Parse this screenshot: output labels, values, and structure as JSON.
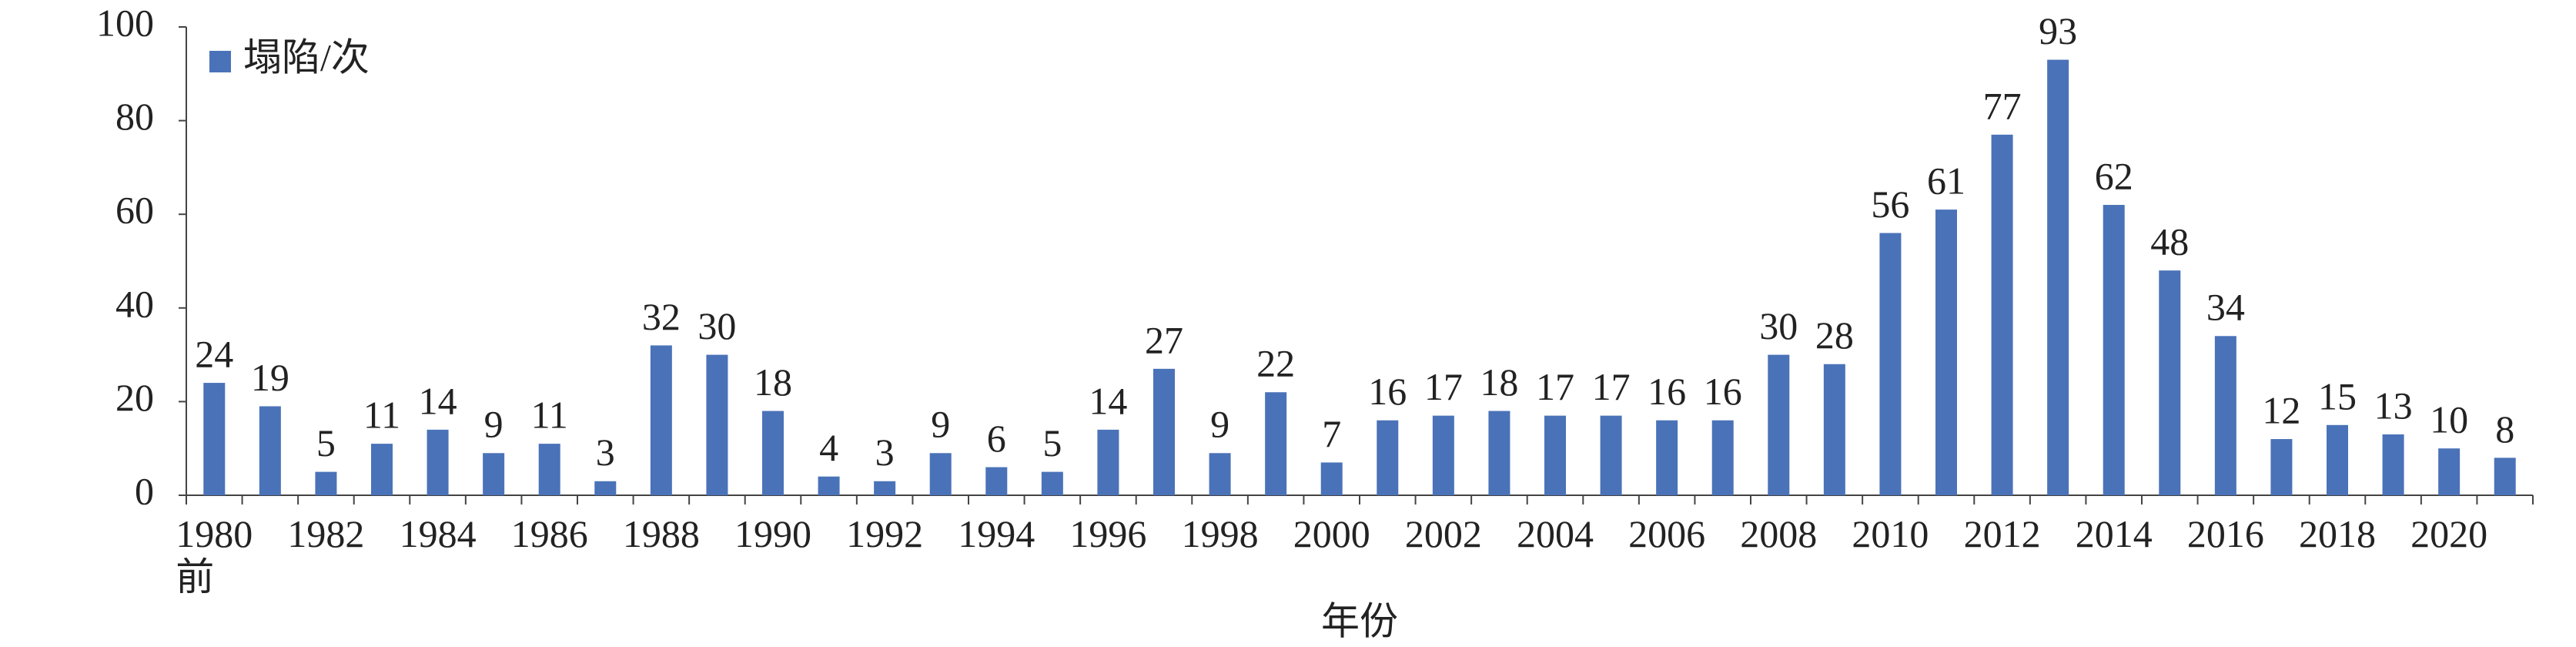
{
  "chart_data": {
    "type": "bar",
    "categories": [
      "1980\n前",
      null,
      "1982",
      null,
      "1984",
      null,
      "1986",
      null,
      "1988",
      null,
      "1990",
      null,
      "1992",
      null,
      "1994",
      null,
      "1996",
      null,
      "1998",
      null,
      "2000",
      null,
      "2002",
      null,
      "2004",
      null,
      "2006",
      null,
      "2008",
      null,
      "2010",
      null,
      "2012",
      null,
      "2014",
      null,
      "2016",
      null,
      "2018",
      null,
      "2020",
      null
    ],
    "series": [
      {
        "name": "塌陷/次",
        "color": "#4a72b8",
        "values": [
          24,
          19,
          5,
          11,
          14,
          9,
          11,
          3,
          32,
          30,
          18,
          4,
          3,
          9,
          6,
          5,
          14,
          27,
          9,
          22,
          7,
          16,
          17,
          18,
          17,
          17,
          16,
          16,
          30,
          28,
          56,
          61,
          77,
          93,
          62,
          48,
          34,
          12,
          15,
          13,
          10,
          8
        ]
      }
    ],
    "xlabel": "年份",
    "ylim": [
      0,
      100
    ],
    "yticks": [
      0,
      20,
      40,
      60,
      80,
      100
    ],
    "legend": "upper left",
    "grid": false
  }
}
